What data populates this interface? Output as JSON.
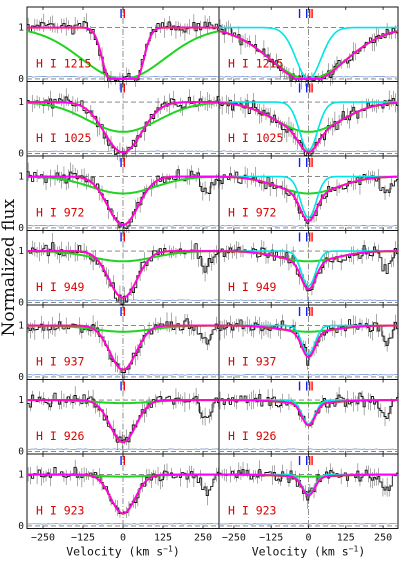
{
  "chart_data": {
    "type": "line",
    "ylabel": "Normalized flux",
    "xlabel": "Velocity (km s",
    "xlabel_sup": "−1",
    "xlabel_close": ")",
    "xlim": [
      -300,
      300
    ],
    "ylim": [
      -0.05,
      1.4
    ],
    "xticks": [
      -250,
      -125,
      0,
      125,
      250
    ],
    "xtick_labels": [
      "−250",
      "−125",
      "0",
      "125",
      "250"
    ],
    "yticks": [
      0,
      1
    ],
    "ytick_labels": [
      "0",
      "1"
    ],
    "transitions": [
      "H I 1215",
      "H I 1025",
      "H I 972",
      "H I 949",
      "H I 937",
      "H I 926",
      "H I 923"
    ],
    "colors": {
      "data": "#111111",
      "error": "#6a8fd0",
      "total_fit": "#ff00ff",
      "single_fit": "#ff2a00",
      "broad_component": "#21d321",
      "narrow_component": "#00e5e5",
      "blue_tick": "#1a1aff",
      "red_tick": "#ff0000",
      "label": "#dd0000"
    },
    "component_markers": {
      "left_columns": [
        -6,
        4
      ],
      "right_columns": [
        -30,
        -6,
        4,
        12
      ]
    },
    "panels_left": [
      {
        "transition": "H I 1215",
        "single_depth": 1.0,
        "single_width": 75,
        "broad_depth": 1.0,
        "broad_width": 130
      },
      {
        "transition": "H I 1025",
        "single_depth": 0.98,
        "single_width": 58,
        "broad_depth": 0.58,
        "broad_width": 110
      },
      {
        "transition": "H I 972",
        "single_depth": 0.94,
        "single_width": 48,
        "broad_depth": 0.33,
        "broad_width": 100
      },
      {
        "transition": "H I 949",
        "single_depth": 0.91,
        "single_width": 44,
        "broad_depth": 0.2,
        "broad_width": 95
      },
      {
        "transition": "H I 937",
        "single_depth": 0.86,
        "single_width": 41,
        "broad_depth": 0.12,
        "broad_width": 90
      },
      {
        "transition": "H I 926",
        "single_depth": 0.82,
        "single_width": 40,
        "broad_depth": 0.06,
        "broad_width": 90
      },
      {
        "transition": "H I 923",
        "single_depth": 0.76,
        "single_width": 38,
        "broad_depth": 0.04,
        "broad_width": 90
      }
    ],
    "panels_right": [
      {
        "transition": "H I 1215",
        "broad_depth": 1.0,
        "broad_width": 130,
        "narrow_depth": 1.0,
        "narrow_width": 42,
        "total_width": 80
      },
      {
        "transition": "H I 1025",
        "broad_depth": 0.58,
        "broad_width": 110,
        "narrow_depth": 0.94,
        "narrow_width": 30,
        "total_width": 60
      },
      {
        "transition": "H I 972",
        "broad_depth": 0.33,
        "broad_width": 100,
        "narrow_depth": 0.8,
        "narrow_width": 26,
        "total_width": 50
      },
      {
        "transition": "H I 949",
        "broad_depth": 0.2,
        "broad_width": 95,
        "narrow_depth": 0.68,
        "narrow_width": 24,
        "total_width": 46
      },
      {
        "transition": "H I 937",
        "broad_depth": 0.12,
        "broad_width": 90,
        "narrow_depth": 0.56,
        "narrow_width": 22,
        "total_width": 42
      },
      {
        "transition": "H I 926",
        "broad_depth": 0.06,
        "broad_width": 90,
        "narrow_depth": 0.46,
        "narrow_width": 22,
        "total_width": 40
      },
      {
        "transition": "H I 923",
        "broad_depth": 0.04,
        "broad_width": 90,
        "narrow_depth": 0.38,
        "narrow_width": 21,
        "total_width": 38
      }
    ]
  }
}
